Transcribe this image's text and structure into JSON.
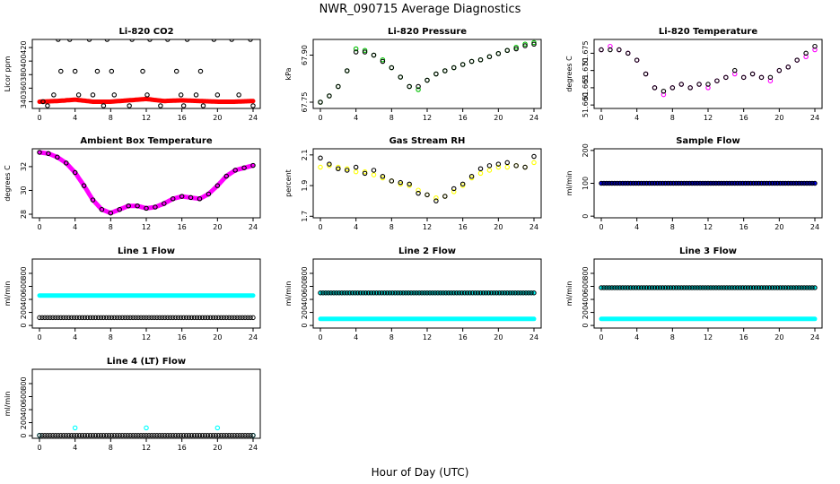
{
  "title": "NWR_090715  Average Diagnostics",
  "xlabel": "Hour of Day (UTC)",
  "chart_data": [
    {
      "type": "scatter",
      "title": "Li-820 CO2",
      "ylabel": "Licor ppm",
      "xlim": [
        0,
        24
      ],
      "ylim": [
        330,
        432
      ],
      "xticks": [
        0,
        4,
        8,
        12,
        16,
        20,
        24
      ],
      "yticks": [
        340,
        360,
        380,
        400,
        420
      ],
      "grid": false,
      "series": [
        {
          "color": "#ff0000",
          "marker": "dense-line",
          "x": [
            0,
            2,
            4,
            6,
            8,
            10,
            12,
            14,
            16,
            18,
            20,
            22,
            24
          ],
          "y": [
            340,
            341,
            343,
            340,
            340,
            342,
            344,
            341,
            342,
            341,
            340,
            340,
            341
          ]
        },
        {
          "color": "#000000",
          "marker": "circle",
          "x": [
            0.4,
            0.9,
            1.6,
            2.1,
            2.4,
            3.4,
            4.0,
            4.4,
            5.6,
            6.0,
            6.5,
            7.2,
            7.6,
            8.1,
            8.4,
            10.1,
            10.4,
            11.6,
            12.1,
            12.4,
            13.6,
            14.4,
            15.4,
            15.9,
            16.2,
            16.6,
            17.6,
            18.1,
            18.4,
            19.6,
            20.0,
            21.6,
            22.4,
            23.7,
            24.0
          ],
          "y": [
            340,
            334,
            350,
            432,
            385,
            432,
            385,
            350,
            432,
            350,
            385,
            334,
            432,
            385,
            350,
            334,
            432,
            385,
            350,
            432,
            334,
            432,
            385,
            350,
            334,
            432,
            350,
            385,
            334,
            432,
            350,
            432,
            350,
            432,
            334
          ]
        }
      ]
    },
    {
      "type": "scatter",
      "title": "Li-820 Pressure",
      "ylabel": "kPa",
      "xlim": [
        0,
        24
      ],
      "ylim": [
        67.73,
        67.95
      ],
      "xticks": [
        0,
        4,
        8,
        12,
        16,
        20,
        24
      ],
      "yticks": [
        67.75,
        67.9
      ],
      "ytick_labels": [
        "67.75",
        "67.90"
      ],
      "grid": false,
      "series": [
        {
          "color": "#00c000",
          "marker": "circle",
          "x": [
            0,
            1,
            2,
            3,
            4,
            5,
            6,
            7,
            8,
            9,
            10,
            11,
            12,
            13,
            14,
            15,
            16,
            17,
            18,
            19,
            20,
            21,
            22,
            23,
            24
          ],
          "y": [
            67.75,
            67.77,
            67.8,
            67.85,
            67.92,
            67.915,
            67.9,
            67.885,
            67.86,
            67.83,
            67.8,
            67.79,
            67.82,
            67.84,
            67.85,
            67.86,
            67.87,
            67.88,
            67.885,
            67.895,
            67.905,
            67.915,
            67.925,
            67.935,
            67.94
          ]
        },
        {
          "color": "#000000",
          "marker": "circle",
          "x": [
            0,
            1,
            2,
            3,
            4,
            5,
            6,
            7,
            8,
            9,
            10,
            11,
            12,
            13,
            14,
            15,
            16,
            17,
            18,
            19,
            20,
            21,
            22,
            23,
            24
          ],
          "y": [
            67.75,
            67.77,
            67.8,
            67.85,
            67.91,
            67.91,
            67.9,
            67.88,
            67.86,
            67.83,
            67.8,
            67.8,
            67.82,
            67.84,
            67.85,
            67.86,
            67.87,
            67.88,
            67.885,
            67.895,
            67.905,
            67.915,
            67.92,
            67.93,
            67.935
          ]
        }
      ]
    },
    {
      "type": "scatter",
      "title": "Li-820 Temperature",
      "ylabel": "degrees C",
      "xlim": [
        0,
        24
      ],
      "ylim": [
        51.659,
        51.679
      ],
      "xticks": [
        0,
        4,
        8,
        12,
        16,
        20,
        24
      ],
      "yticks": [
        51.66,
        51.665,
        51.67,
        51.675
      ],
      "ytick_labels": [
        "51.660",
        "51.665",
        "51.670",
        "51.675"
      ],
      "grid": false,
      "series": [
        {
          "color": "#ff00ff",
          "marker": "circle",
          "x": [
            0,
            1,
            2,
            3,
            4,
            5,
            6,
            7,
            8,
            9,
            10,
            11,
            12,
            13,
            14,
            15,
            16,
            17,
            18,
            19,
            20,
            21,
            22,
            23,
            24
          ],
          "y": [
            51.676,
            51.677,
            51.676,
            51.675,
            51.673,
            51.669,
            51.665,
            51.663,
            51.665,
            51.666,
            51.665,
            51.666,
            51.665,
            51.667,
            51.668,
            51.669,
            51.668,
            51.669,
            51.668,
            51.667,
            51.67,
            51.671,
            51.673,
            51.674,
            51.676
          ]
        },
        {
          "color": "#000000",
          "marker": "circle",
          "x": [
            0,
            1,
            2,
            3,
            4,
            5,
            6,
            7,
            8,
            9,
            10,
            11,
            12,
            13,
            14,
            15,
            16,
            17,
            18,
            19,
            20,
            21,
            22,
            23,
            24
          ],
          "y": [
            51.676,
            51.676,
            51.676,
            51.675,
            51.673,
            51.669,
            51.665,
            51.664,
            51.665,
            51.666,
            51.665,
            51.666,
            51.666,
            51.667,
            51.668,
            51.67,
            51.668,
            51.669,
            51.668,
            51.668,
            51.67,
            51.671,
            51.673,
            51.675,
            51.677
          ]
        }
      ]
    },
    {
      "type": "scatter",
      "title": "Ambient Box Temperature",
      "ylabel": "degrees C",
      "xlim": [
        0,
        24
      ],
      "ylim": [
        27.7,
        33.5
      ],
      "xticks": [
        0,
        4,
        8,
        12,
        16,
        20,
        24
      ],
      "yticks": [
        28,
        30,
        32
      ],
      "grid": false,
      "series": [
        {
          "color": "#ff00ff",
          "marker": "dense-line",
          "x": [
            0,
            1,
            2,
            3,
            4,
            5,
            6,
            7,
            8,
            9,
            10,
            11,
            12,
            13,
            14,
            15,
            16,
            17,
            18,
            19,
            20,
            21,
            22,
            23,
            24
          ],
          "y": [
            33.2,
            33.1,
            32.8,
            32.3,
            31.5,
            30.4,
            29.2,
            28.4,
            28.1,
            28.4,
            28.7,
            28.7,
            28.5,
            28.6,
            28.9,
            29.3,
            29.5,
            29.4,
            29.3,
            29.7,
            30.4,
            31.2,
            31.7,
            31.9,
            32.1
          ]
        },
        {
          "color": "#000000",
          "marker": "circle",
          "x": [
            0,
            1,
            2,
            3,
            4,
            5,
            6,
            7,
            8,
            9,
            10,
            11,
            12,
            13,
            14,
            15,
            16,
            17,
            18,
            19,
            20,
            21,
            22,
            23,
            24
          ],
          "y": [
            33.2,
            33.1,
            32.8,
            32.3,
            31.5,
            30.4,
            29.2,
            28.4,
            28.1,
            28.4,
            28.7,
            28.7,
            28.5,
            28.6,
            28.9,
            29.3,
            29.5,
            29.4,
            29.3,
            29.7,
            30.4,
            31.2,
            31.7,
            31.9,
            32.1
          ]
        }
      ]
    },
    {
      "type": "scatter",
      "title": "Gas Stream RH",
      "ylabel": "percent",
      "xlim": [
        0,
        24
      ],
      "ylim": [
        1.69,
        2.14
      ],
      "xticks": [
        0,
        4,
        8,
        12,
        16,
        20,
        24
      ],
      "yticks": [
        1.7,
        1.9,
        2.1
      ],
      "grid": false,
      "series": [
        {
          "color": "#ffff00",
          "marker": "circle",
          "x": [
            0,
            1,
            2,
            3,
            4,
            5,
            6,
            7,
            8,
            9,
            10,
            11,
            12,
            13,
            14,
            15,
            16,
            17,
            18,
            19,
            20,
            21,
            22,
            23,
            24
          ],
          "y": [
            2.02,
            2.03,
            2.02,
            2.01,
            1.99,
            1.99,
            1.97,
            1.95,
            1.93,
            1.91,
            1.9,
            1.87,
            1.84,
            1.82,
            1.83,
            1.86,
            1.9,
            1.95,
            1.98,
            2.0,
            2.02,
            2.02,
            2.03,
            2.02,
            2.05
          ]
        },
        {
          "color": "#000000",
          "marker": "circle",
          "x": [
            0,
            1,
            2,
            3,
            4,
            5,
            6,
            7,
            8,
            9,
            10,
            11,
            12,
            13,
            14,
            15,
            16,
            17,
            18,
            19,
            20,
            21,
            22,
            23,
            24
          ],
          "y": [
            2.08,
            2.04,
            2.01,
            2.0,
            2.02,
            1.98,
            2.0,
            1.96,
            1.93,
            1.92,
            1.91,
            1.85,
            1.84,
            1.8,
            1.83,
            1.88,
            1.91,
            1.96,
            2.01,
            2.03,
            2.04,
            2.05,
            2.03,
            2.02,
            2.09
          ]
        }
      ]
    },
    {
      "type": "scatter",
      "title": "Sample Flow",
      "ylabel": "ml/min",
      "xlim": [
        0,
        24
      ],
      "ylim": [
        -5,
        205
      ],
      "xticks": [
        0,
        4,
        8,
        12,
        16,
        20,
        24
      ],
      "yticks": [
        0,
        100,
        200
      ],
      "grid": false,
      "series": [
        {
          "color": "#0000ff",
          "marker": "dense-line",
          "x": [
            0,
            24
          ],
          "y": [
            100,
            100
          ]
        },
        {
          "color": "#000000",
          "marker": "circle",
          "x": [
            0,
            24
          ],
          "y": [
            100,
            100
          ]
        }
      ]
    },
    {
      "type": "scatter",
      "title": "Line 1 Flow",
      "ylabel": "ml/min",
      "xlim": [
        0,
        24
      ],
      "ylim": [
        -40,
        1020
      ],
      "xticks": [
        0,
        4,
        8,
        12,
        16,
        20,
        24
      ],
      "yticks": [
        0,
        200,
        400,
        600,
        800
      ],
      "grid": false,
      "series": [
        {
          "color": "#00ffff",
          "marker": "dense-line",
          "x": [
            0,
            24
          ],
          "y": [
            460,
            460
          ]
        },
        {
          "color": "#000000",
          "marker": "circle",
          "x": [
            0,
            24
          ],
          "y": [
            120,
            120
          ]
        }
      ]
    },
    {
      "type": "scatter",
      "title": "Line 2 Flow",
      "ylabel": "ml/min",
      "xlim": [
        0,
        24
      ],
      "ylim": [
        -40,
        1020
      ],
      "xticks": [
        0,
        4,
        8,
        12,
        16,
        20,
        24
      ],
      "yticks": [
        0,
        200,
        400,
        600,
        800
      ],
      "grid": false,
      "series": [
        {
          "color": "#00ffff",
          "marker": "dense-line",
          "x": [
            0,
            24
          ],
          "y": [
            100,
            100
          ]
        },
        {
          "color": "#00ffff",
          "marker": "dense-line",
          "x": [
            0,
            24
          ],
          "y": [
            500,
            500
          ]
        },
        {
          "color": "#000000",
          "marker": "circle",
          "x": [
            0,
            24
          ],
          "y": [
            500,
            500
          ]
        }
      ]
    },
    {
      "type": "scatter",
      "title": "Line 3 Flow",
      "ylabel": "ml/min",
      "xlim": [
        0,
        24
      ],
      "ylim": [
        -40,
        1020
      ],
      "xticks": [
        0,
        4,
        8,
        12,
        16,
        20,
        24
      ],
      "yticks": [
        0,
        200,
        400,
        600,
        800
      ],
      "grid": false,
      "series": [
        {
          "color": "#00ffff",
          "marker": "dense-line",
          "x": [
            0,
            24
          ],
          "y": [
            100,
            100
          ]
        },
        {
          "color": "#00ffff",
          "marker": "dense-line",
          "x": [
            0,
            24
          ],
          "y": [
            580,
            580
          ]
        },
        {
          "color": "#000000",
          "marker": "circle",
          "x": [
            0,
            24
          ],
          "y": [
            580,
            580
          ]
        }
      ]
    },
    {
      "type": "scatter",
      "title": "Line 4 (LT) Flow",
      "ylabel": "ml/min",
      "xlim": [
        0,
        24
      ],
      "ylim": [
        -40,
        1020
      ],
      "xticks": [
        0,
        4,
        8,
        12,
        16,
        20,
        24
      ],
      "yticks": [
        0,
        200,
        400,
        600,
        800
      ],
      "grid": false,
      "series": [
        {
          "color": "#00ffff",
          "marker": "circle",
          "x": [
            0,
            4,
            12,
            20,
            24
          ],
          "y": [
            5,
            120,
            120,
            120,
            5
          ]
        },
        {
          "color": "#000000",
          "marker": "circle",
          "x": [
            0,
            24
          ],
          "y": [
            5,
            5
          ]
        }
      ]
    }
  ]
}
